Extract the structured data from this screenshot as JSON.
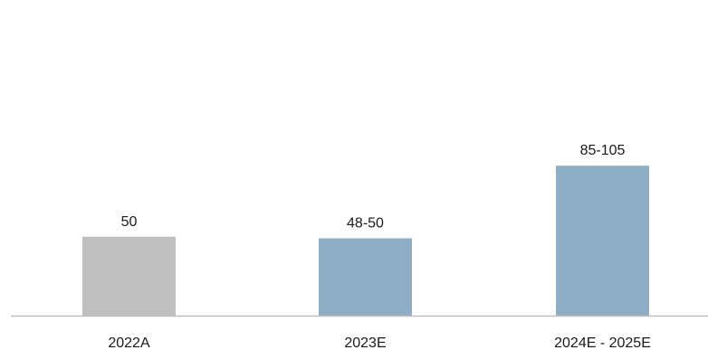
{
  "chart_data": {
    "type": "bar",
    "title": "",
    "xlabel": "",
    "ylabel": "",
    "categories": [
      "2022A",
      "2023E",
      "2024E - 2025E"
    ],
    "values": [
      50,
      49,
      95
    ],
    "ranges": [
      [
        50,
        50
      ],
      [
        48,
        50
      ],
      [
        85,
        105
      ]
    ],
    "data_labels": [
      "50",
      "48-50",
      "85-105"
    ],
    "bar_colors": [
      "#bfbfbf",
      "#8eaec5",
      "#8eaec5"
    ],
    "ylim": [
      0,
      200
    ],
    "grid": false,
    "axis_color": "#bfbfbf"
  }
}
